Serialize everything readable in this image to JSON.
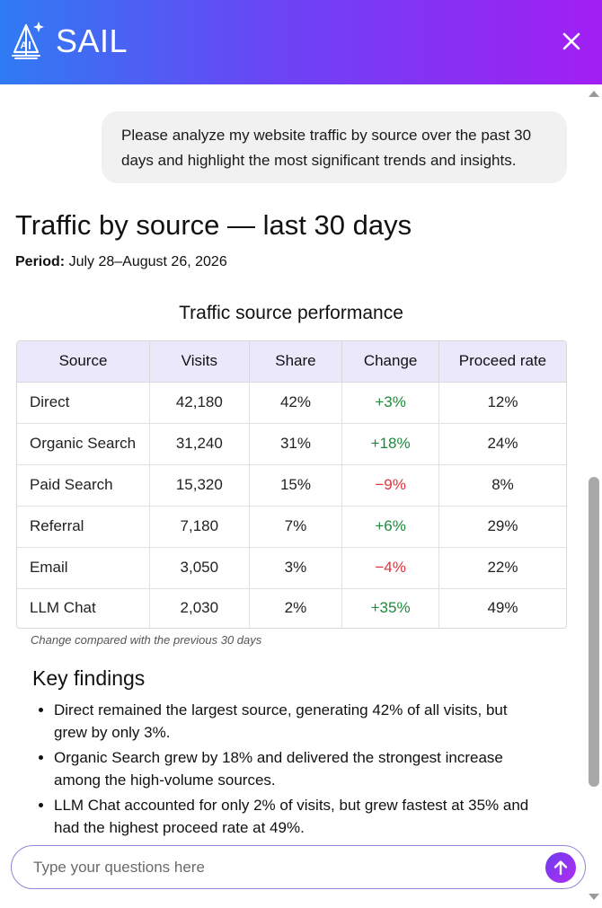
{
  "header": {
    "brand": "SAIL",
    "logo_icon": "sailboat-ai-icon",
    "close_icon": "close-icon"
  },
  "conversation": {
    "user_message": "Please analyze my website traffic by source over the past 30 days and highlight the most significant trends and insights."
  },
  "report": {
    "title": "Traffic by source — last 30 days",
    "period_label": "Period:",
    "period_value": "July 28–August 26, 2026",
    "table_title": "Traffic source performance",
    "columns": [
      "Source",
      "Visits",
      "Share",
      "Change",
      "Proceed rate"
    ],
    "rows": [
      {
        "source": "Direct",
        "visits": "42,180",
        "share": "42%",
        "change": "+3%",
        "proceed_rate": "12%"
      },
      {
        "source": "Organic Search",
        "visits": "31,240",
        "share": "31%",
        "change": "+18%",
        "proceed_rate": "24%"
      },
      {
        "source": "Paid Search",
        "visits": "15,320",
        "share": "15%",
        "change": "−9%",
        "proceed_rate": "8%"
      },
      {
        "source": "Referral",
        "visits": "7,180",
        "share": "7%",
        "change": "+6%",
        "proceed_rate": "29%"
      },
      {
        "source": "Email",
        "visits": "3,050",
        "share": "3%",
        "change": "−4%",
        "proceed_rate": "22%"
      },
      {
        "source": "LLM Chat",
        "visits": "2,030",
        "share": "2%",
        "change": "+35%",
        "proceed_rate": "49%"
      }
    ],
    "table_note": "Change compared with the previous 30 days",
    "findings_title": "Key findings",
    "findings": [
      "Direct remained the largest source, generating 42% of all visits, but grew by only 3%.",
      "Organic Search grew by 18% and delivered the strongest increase among the high-volume sources.",
      "LLM Chat accounted for only 2% of visits, but grew fastest at 35% and had the highest proceed rate at 49%."
    ]
  },
  "input": {
    "placeholder": "Type your questions here",
    "value": "",
    "send_icon": "arrow-up-icon"
  },
  "colors": {
    "header_gradient_start": "#2f7bf3",
    "header_gradient_end": "#a21ef3",
    "table_header_bg": "#ebe8fc",
    "positive": "#1e8a3c",
    "negative": "#e0313d",
    "bubble_bg": "#f1f1f1"
  }
}
